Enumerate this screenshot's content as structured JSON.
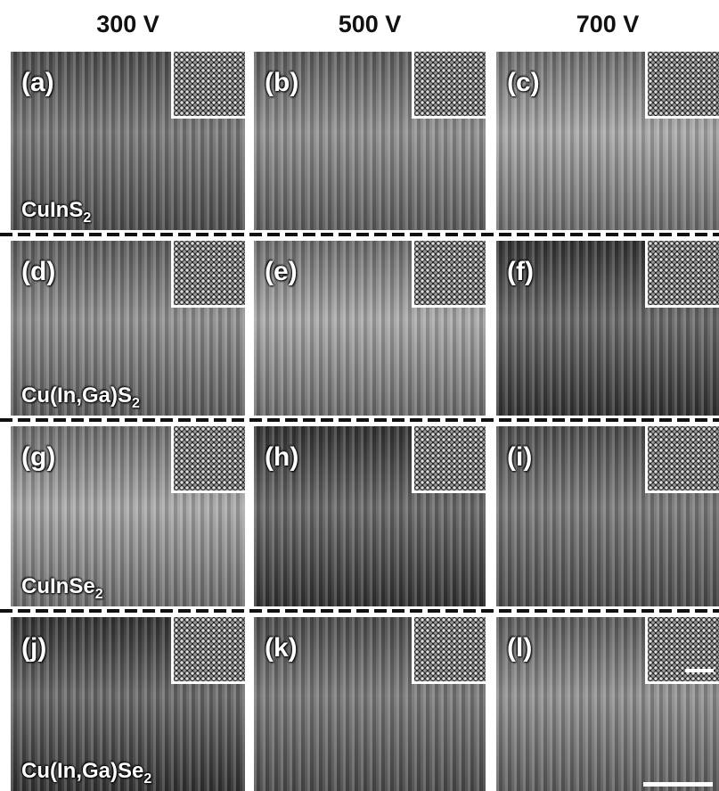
{
  "columns": [
    "300 V",
    "500 V",
    "700 V"
  ],
  "rows": [
    {
      "material": {
        "text": "CuInS",
        "sub": "2"
      },
      "panels": [
        "(a)",
        "(b)",
        "(c)"
      ]
    },
    {
      "material": {
        "text": "Cu(In,Ga)S",
        "sub": "2"
      },
      "panels": [
        "(d)",
        "(e)",
        "(f)"
      ]
    },
    {
      "material": {
        "text": "CuInSe",
        "sub": "2"
      },
      "panels": [
        "(g)",
        "(h)",
        "(i)"
      ]
    },
    {
      "material": {
        "text": "Cu(In,Ga)Se",
        "sub": "2"
      },
      "panels": [
        "(j)",
        "(k)",
        "(l)"
      ]
    }
  ]
}
